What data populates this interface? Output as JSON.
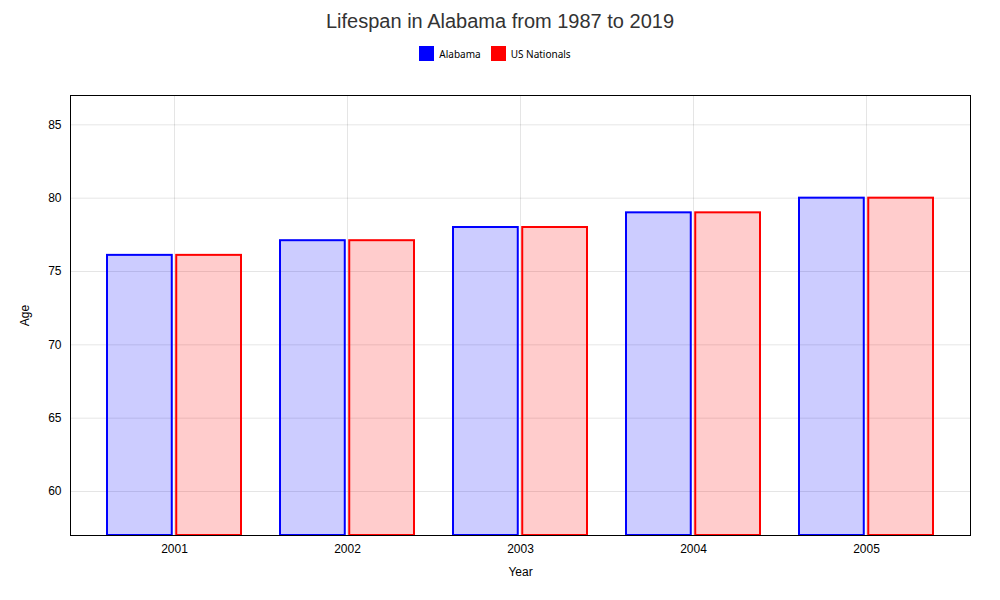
{
  "chart_data": {
    "type": "bar",
    "title": "Lifespan in Alabama from 1987 to 2019",
    "xlabel": "Year",
    "ylabel": "Age",
    "categories": [
      "2001",
      "2002",
      "2003",
      "2004",
      "2005"
    ],
    "series": [
      {
        "name": "Alabama",
        "color": "#0000ff",
        "values": [
          76.1,
          77.1,
          78.0,
          79.0,
          80.0
        ]
      },
      {
        "name": "US Nationals",
        "color": "#ff0000",
        "values": [
          76.1,
          77.1,
          78.0,
          79.0,
          80.0
        ]
      }
    ],
    "ylim": [
      57,
      87
    ],
    "yticks": [
      60,
      65,
      70,
      75,
      80,
      85
    ],
    "grid": true,
    "legend": "top"
  }
}
